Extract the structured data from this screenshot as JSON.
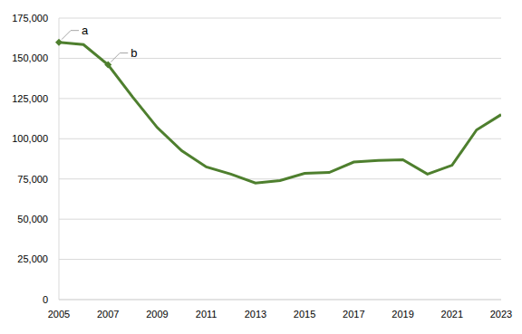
{
  "chart_data": {
    "type": "line",
    "x": [
      2005,
      2006,
      2007,
      2008,
      2009,
      2010,
      2011,
      2012,
      2013,
      2014,
      2015,
      2016,
      2017,
      2018,
      2019,
      2020,
      2021,
      2022,
      2023
    ],
    "values": [
      160000,
      158500,
      146000,
      126000,
      107000,
      92500,
      82500,
      78000,
      72500,
      74000,
      78500,
      79000,
      85500,
      86500,
      87000,
      78000,
      83500,
      105500,
      115000
    ],
    "color": "#4e7f2e",
    "xlim": [
      2005,
      2023
    ],
    "xticks": [
      2005,
      2007,
      2009,
      2011,
      2013,
      2015,
      2017,
      2019,
      2021,
      2023
    ],
    "ylim": [
      0,
      175000
    ],
    "yticks": [
      0,
      {
        "value": 25000,
        "label": "25,000"
      },
      {
        "value": 50000,
        "label": "50,000"
      },
      {
        "value": 75000,
        "label": "75,000"
      },
      {
        "value": 100000,
        "label": "100,000"
      },
      {
        "value": 125000,
        "label": "125,000"
      },
      {
        "value": 150000,
        "label": "150,000"
      },
      {
        "value": 175000,
        "label": "175,000"
      }
    ],
    "grid": true,
    "annotations": [
      {
        "text": "a",
        "x": 2005,
        "y": 160000
      },
      {
        "text": "b",
        "x": 2007,
        "y": 146000
      }
    ]
  }
}
